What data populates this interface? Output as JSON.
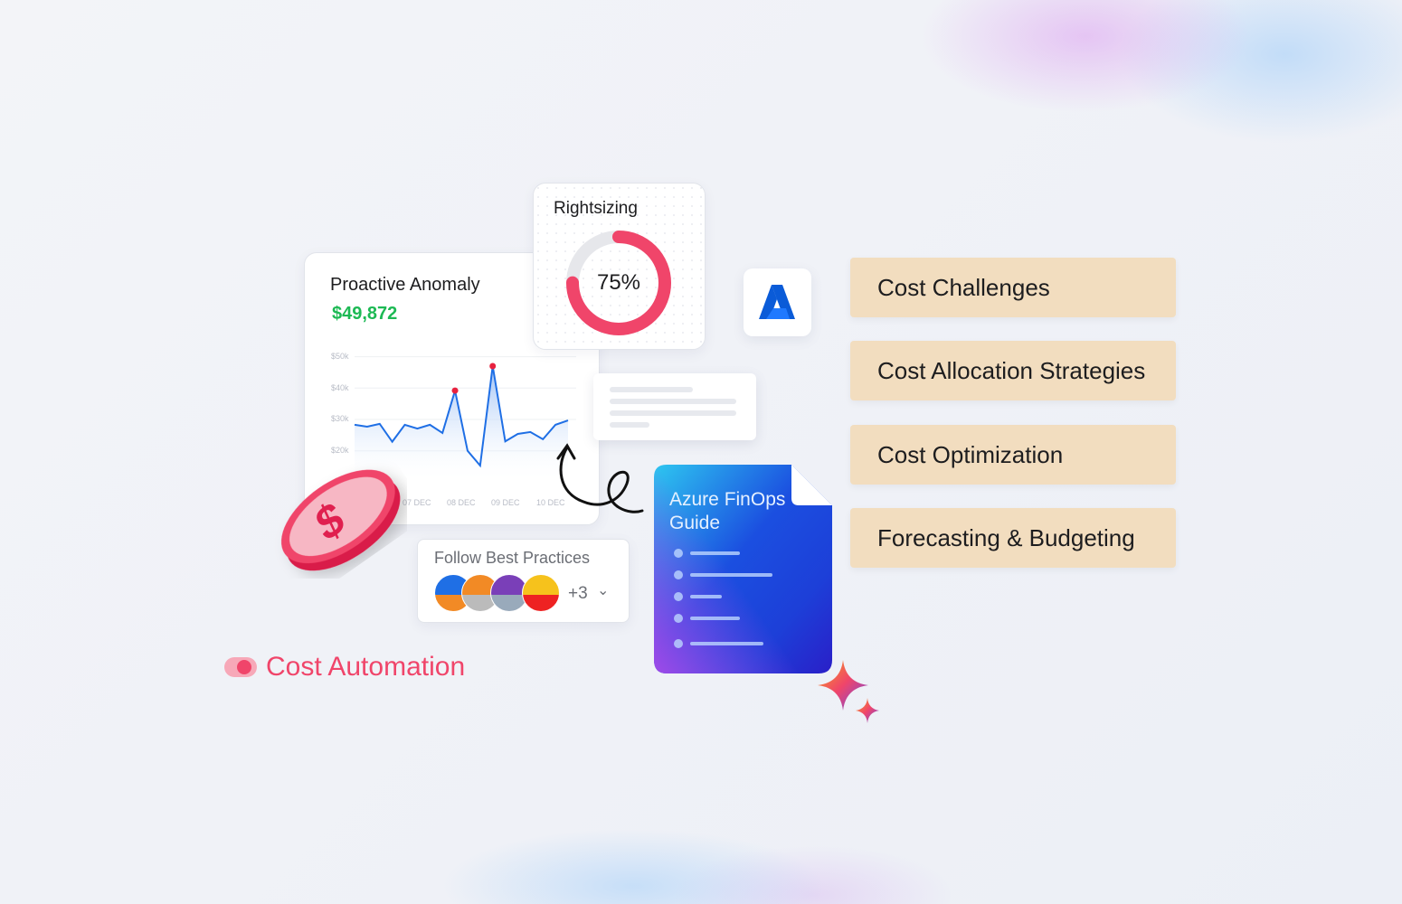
{
  "anomaly_card": {
    "title": "Proactive Anomaly",
    "amount": "$49,872"
  },
  "rightsizing_card": {
    "title": "Rightsizing",
    "percent_label": "75%",
    "percent": 75
  },
  "best_practices": {
    "title": "Follow Best Practices",
    "more_count": "+3"
  },
  "cost_automation": {
    "label": "Cost Automation"
  },
  "guide": {
    "title_line1": "Azure FinOps",
    "title_line2": "Guide"
  },
  "topics": [
    {
      "label": "Cost Challenges"
    },
    {
      "label": "Cost Allocation Strategies"
    },
    {
      "label": "Cost Optimization"
    },
    {
      "label": "Forecasting & Budgeting"
    }
  ],
  "colors": {
    "accent_pink": "#f0456a",
    "amount_green": "#1db954",
    "line_blue": "#1f6fe5",
    "pill_bg": "#f2ddbf",
    "azure_blue": "#0a5bd8"
  },
  "icons": {
    "logo": "azure-logo",
    "coin": "dollar-coin",
    "sparkle": "sparkle-icon",
    "chevron": "chevron-down-icon"
  },
  "chart_data": {
    "type": "area",
    "y_ticks": [
      "$50k",
      "$40k",
      "$30k",
      "$20k"
    ],
    "y_tick_values": [
      50,
      40,
      30,
      20
    ],
    "x_ticks": [
      "07 DEC",
      "08 DEC",
      "09 DEC",
      "10 DEC"
    ],
    "values": [
      28.3,
      27.7,
      28.6,
      22.9,
      28.3,
      27.1,
      28.3,
      25.7,
      39.2,
      20,
      15.3,
      47,
      23,
      25.4,
      26,
      23.7,
      28.3,
      29.7
    ],
    "highlight_indices": [
      8,
      11
    ],
    "ylim": [
      10,
      50
    ],
    "grid": true
  }
}
